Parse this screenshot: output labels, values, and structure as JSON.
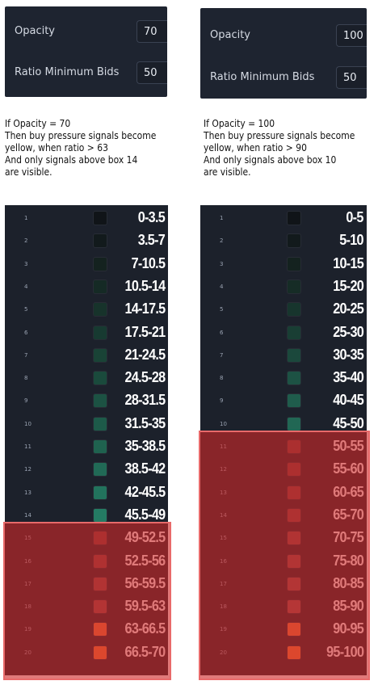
{
  "left": {
    "settings": {
      "opacity_label": "Opacity",
      "opacity_value": "70",
      "ratio_label": "Ratio Minimum Bids",
      "ratio_value": "50"
    },
    "note": [
      "If Opacity = 70",
      "Then buy pressure signals become",
      "yellow, when ratio > 63",
      "And only signals above box 14",
      "are visible."
    ],
    "rows": [
      {
        "n": "1",
        "range": "0-3.5",
        "color": "#101418"
      },
      {
        "n": "2",
        "range": "3.5-7",
        "color": "#121a1c"
      },
      {
        "n": "3",
        "range": "7-10.5",
        "color": "#14221f"
      },
      {
        "n": "4",
        "range": "10.5-14",
        "color": "#152a25"
      },
      {
        "n": "5",
        "range": "14-17.5",
        "color": "#17332b"
      },
      {
        "n": "6",
        "range": "17.5-21",
        "color": "#173a31"
      },
      {
        "n": "7",
        "range": "21-24.5",
        "color": "#194336"
      },
      {
        "n": "8",
        "range": "24.5-28",
        "color": "#1a4a3c"
      },
      {
        "n": "9",
        "range": "28-31.5",
        "color": "#1c5243"
      },
      {
        "n": "10",
        "range": "31.5-35",
        "color": "#1d5a49"
      },
      {
        "n": "11",
        "range": "35-38.5",
        "color": "#1f624f"
      },
      {
        "n": "12",
        "range": "38.5-42",
        "color": "#216a56"
      },
      {
        "n": "13",
        "range": "42-45.5",
        "color": "#22735d"
      },
      {
        "n": "14",
        "range": "45.5-49",
        "color": "#247b63"
      },
      {
        "n": "15",
        "range": "49-52.5",
        "color": "#7a3c3c"
      },
      {
        "n": "16",
        "range": "52.5-56",
        "color": "#7e4040"
      },
      {
        "n": "17",
        "range": "56-59.5",
        "color": "#844444"
      },
      {
        "n": "18",
        "range": "59.5-63",
        "color": "#884848"
      },
      {
        "n": "19",
        "range": "63-66.5",
        "color": "#f0763a"
      },
      {
        "n": "20",
        "range": "66.5-70",
        "color": "#f57a36"
      }
    ],
    "highlight_from_row": 15
  },
  "right": {
    "settings": {
      "opacity_label": "Opacity",
      "opacity_value": "100",
      "ratio_label": "Ratio Minimum Bids",
      "ratio_value": "50"
    },
    "note": [
      "If Opacity = 100",
      "Then buy pressure signals become",
      "yellow, when ratio > 90",
      "And only signals above box 10",
      "are visible."
    ],
    "rows": [
      {
        "n": "1",
        "range": "0-5",
        "color": "#101418"
      },
      {
        "n": "2",
        "range": "5-10",
        "color": "#121a1c"
      },
      {
        "n": "3",
        "range": "10-15",
        "color": "#14221f"
      },
      {
        "n": "4",
        "range": "15-20",
        "color": "#162c26"
      },
      {
        "n": "5",
        "range": "20-25",
        "color": "#17352d"
      },
      {
        "n": "6",
        "range": "25-30",
        "color": "#193e34"
      },
      {
        "n": "7",
        "range": "30-35",
        "color": "#1b483c"
      },
      {
        "n": "8",
        "range": "35-40",
        "color": "#1d5244"
      },
      {
        "n": "9",
        "range": "40-45",
        "color": "#1f5c4c"
      },
      {
        "n": "10",
        "range": "45-50",
        "color": "#216754"
      },
      {
        "n": "11",
        "range": "50-55",
        "color": "#743a3a"
      },
      {
        "n": "12",
        "range": "55-60",
        "color": "#773c3c"
      },
      {
        "n": "13",
        "range": "60-65",
        "color": "#7b3e3e"
      },
      {
        "n": "14",
        "range": "65-70",
        "color": "#7f4141"
      },
      {
        "n": "15",
        "range": "70-75",
        "color": "#834444"
      },
      {
        "n": "16",
        "range": "75-80",
        "color": "#874747"
      },
      {
        "n": "17",
        "range": "80-85",
        "color": "#8a4a4a"
      },
      {
        "n": "18",
        "range": "85-90",
        "color": "#8e4d4d"
      },
      {
        "n": "19",
        "range": "90-95",
        "color": "#f0763a"
      },
      {
        "n": "20",
        "range": "95-100",
        "color": "#f57a36"
      }
    ],
    "highlight_from_row": 11
  }
}
